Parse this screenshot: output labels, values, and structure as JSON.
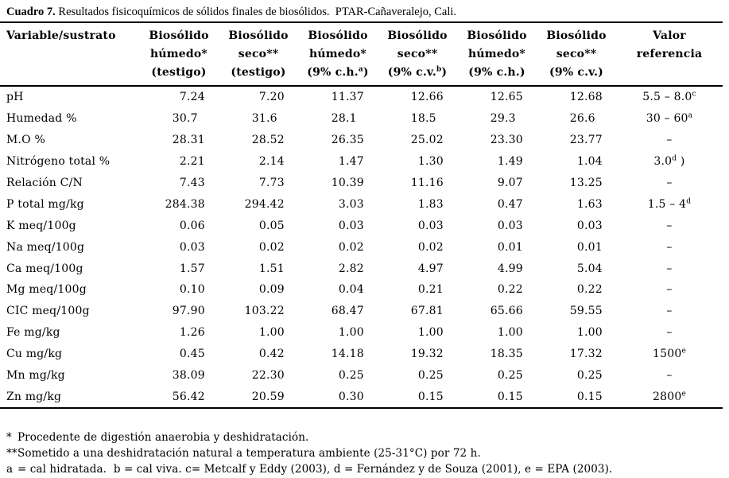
{
  "title": {
    "label": "Cuadro 7.",
    "rest": " Resultados fisicoquímicos de sólidos finales de biosólidos.  PTAR-Cañaveralejo, Cali."
  },
  "table": {
    "columns": [
      {
        "lines": [
          {
            "text": "Variable/sustrato"
          }
        ]
      },
      {
        "lines": [
          {
            "text": "Biosólido"
          },
          {
            "text": "húmedo*"
          },
          {
            "text": "(testigo)"
          }
        ]
      },
      {
        "lines": [
          {
            "text": "Biosólido"
          },
          {
            "text": "seco**"
          },
          {
            "text": "(testigo)"
          }
        ]
      },
      {
        "lines": [
          {
            "text": "Biosólido"
          },
          {
            "text": "húmedo*"
          },
          {
            "text": "(9% c.h.",
            "sup": "a",
            "post": ")"
          }
        ]
      },
      {
        "lines": [
          {
            "text": "Biosólido"
          },
          {
            "text": "seco**"
          },
          {
            "text": "(9% c.v.",
            "sup": "b",
            "post": ")"
          }
        ]
      },
      {
        "lines": [
          {
            "text": "Biosólido"
          },
          {
            "text": "húmedo*"
          },
          {
            "text": "(9% c.h.)"
          }
        ]
      },
      {
        "lines": [
          {
            "text": "Biosólido"
          },
          {
            "text": "seco**"
          },
          {
            "text": "(9% c.v.)"
          }
        ]
      },
      {
        "lines": [
          {
            "text": "Valor"
          },
          {
            "text": "referencia"
          }
        ]
      }
    ],
    "rows": [
      {
        "variable": "pH",
        "values": [
          "7.24",
          "7.20",
          "11.37",
          "12.66",
          "12.65",
          "12.68"
        ],
        "ref": {
          "text": "5.5 – 8.0",
          "sup": "c"
        }
      },
      {
        "variable": "Humedad %",
        "values": [
          "30.7",
          "31.6",
          "28.1",
          "18.5",
          "29.3",
          "26.6"
        ],
        "ref": {
          "text": "30 – 60",
          "sup": "a"
        }
      },
      {
        "variable": "M.O %",
        "values": [
          "28.31",
          "28.52",
          "26.35",
          "25.02",
          "23.30",
          "23.77"
        ],
        "ref": {
          "text": "–"
        }
      },
      {
        "variable": "Nitrógeno total %",
        "values": [
          "2.21",
          "2.14",
          "1.47",
          "1.30",
          "1.49",
          "1.04"
        ],
        "ref": {
          "text": "3.0",
          "sup": "d",
          "post": " )"
        }
      },
      {
        "variable": "Relación C/N",
        "values": [
          "7.43",
          "7.73",
          "10.39",
          "11.16",
          "9.07",
          "13.25"
        ],
        "ref": {
          "text": "–"
        }
      },
      {
        "variable": "P total mg/kg",
        "values": [
          "284.38",
          "294.42",
          "3.03",
          "1.83",
          "0.47",
          "1.63"
        ],
        "ref": {
          "text": "1.5 – 4",
          "sup": "d"
        }
      },
      {
        "variable": "K meq/100g",
        "values": [
          "0.06",
          "0.05",
          "0.03",
          "0.03",
          "0.03",
          "0.03"
        ],
        "ref": {
          "text": "–"
        }
      },
      {
        "variable": "Na meq/100g",
        "values": [
          "0.03",
          "0.02",
          "0.02",
          "0.02",
          "0.01",
          "0.01"
        ],
        "ref": {
          "text": "–"
        }
      },
      {
        "variable": "Ca meq/100g",
        "values": [
          "1.57",
          "1.51",
          "2.82",
          "4.97",
          "4.99",
          "5.04"
        ],
        "ref": {
          "text": "–"
        }
      },
      {
        "variable": "Mg meq/100g",
        "values": [
          "0.10",
          "0.09",
          "0.04",
          "0.21",
          "0.22",
          "0.22"
        ],
        "ref": {
          "text": "–"
        }
      },
      {
        "variable": "CIC meq/100g",
        "values": [
          "97.90",
          "103.22",
          "68.47",
          "67.81",
          "65.66",
          "59.55"
        ],
        "ref": {
          "text": "–"
        }
      },
      {
        "variable": "Fe mg/kg",
        "values": [
          "1.26",
          "1.00",
          "1.00",
          "1.00",
          "1.00",
          "1.00"
        ],
        "ref": {
          "text": "–"
        }
      },
      {
        "variable": "Cu mg/kg",
        "values": [
          "0.45",
          "0.42",
          "14.18",
          "19.32",
          "18.35",
          "17.32"
        ],
        "ref": {
          "text": "1500",
          "sup": "e"
        }
      },
      {
        "variable": "Mn mg/kg",
        "values": [
          "38.09",
          "22.30",
          "0.25",
          "0.25",
          "0.25",
          "0.25"
        ],
        "ref": {
          "text": "–"
        }
      },
      {
        "variable": "Zn mg/kg",
        "values": [
          "56.42",
          "20.59",
          "0.30",
          "0.15",
          "0.15",
          "0.15"
        ],
        "ref": {
          "text": "2800",
          "sup": "e"
        }
      }
    ]
  },
  "footnotes": [
    {
      "marker": "*",
      "text": "Procedente de digestión anaerobia y deshidratación."
    },
    {
      "marker": "**",
      "text": "Sometido a una deshidratación natural a temperatura ambiente (25-31°C) por 72 h."
    },
    {
      "marker": "a",
      "text": "= cal hidratada.  b = cal viva. c= Metcalf y Eddy (2003), d = Fernández y de Souza (2001), e = EPA (2003)."
    }
  ]
}
